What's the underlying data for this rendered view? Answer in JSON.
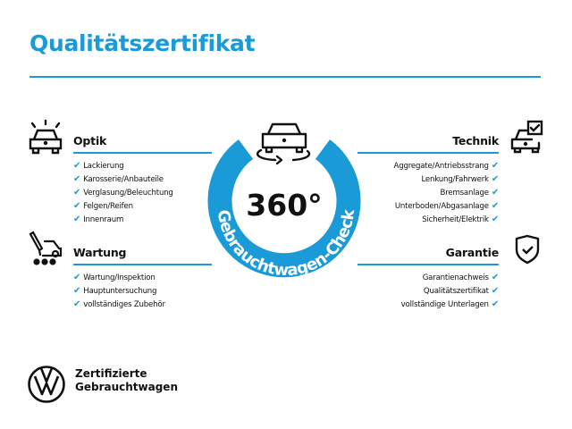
{
  "title": "Qualitätszertifikat",
  "colors": {
    "accent": "#1a9ad6",
    "text": "#111111"
  },
  "center": {
    "value": "360°",
    "ring_label": "Gebrauchtwagen-Check",
    "icon": "car-rotate-icon"
  },
  "sections": {
    "optik": {
      "heading": "Optik",
      "icon": "car-lights-icon",
      "items": [
        "Lackierung",
        "Karosserie/Anbauteile",
        "Verglasung/Beleuchtung",
        "Felgen/Reifen",
        "Innenraum"
      ]
    },
    "wartung": {
      "heading": "Wartung",
      "icon": "service-tools-icon",
      "items": [
        "Wartung/Inspektion",
        "Hauptuntersuchung",
        "vollständiges Zubehör"
      ]
    },
    "technik": {
      "heading": "Technik",
      "icon": "car-checkbox-icon",
      "items": [
        "Aggregate/Antriebsstrang",
        "Lenkung/Fahrwerk",
        "Bremsanlage",
        "Unterboden/Abgasanlage",
        "Sicherheit/Elektrik"
      ]
    },
    "garantie": {
      "heading": "Garantie",
      "icon": "shield-check-icon",
      "items": [
        "Garantienachweis",
        "Qualitätszertifikat",
        "vollständige Unterlagen"
      ]
    }
  },
  "check_mark": "✔",
  "footer": {
    "line1": "Zertifizierte",
    "line2": "Gebrauchtwagen",
    "logo": "vw-logo"
  }
}
